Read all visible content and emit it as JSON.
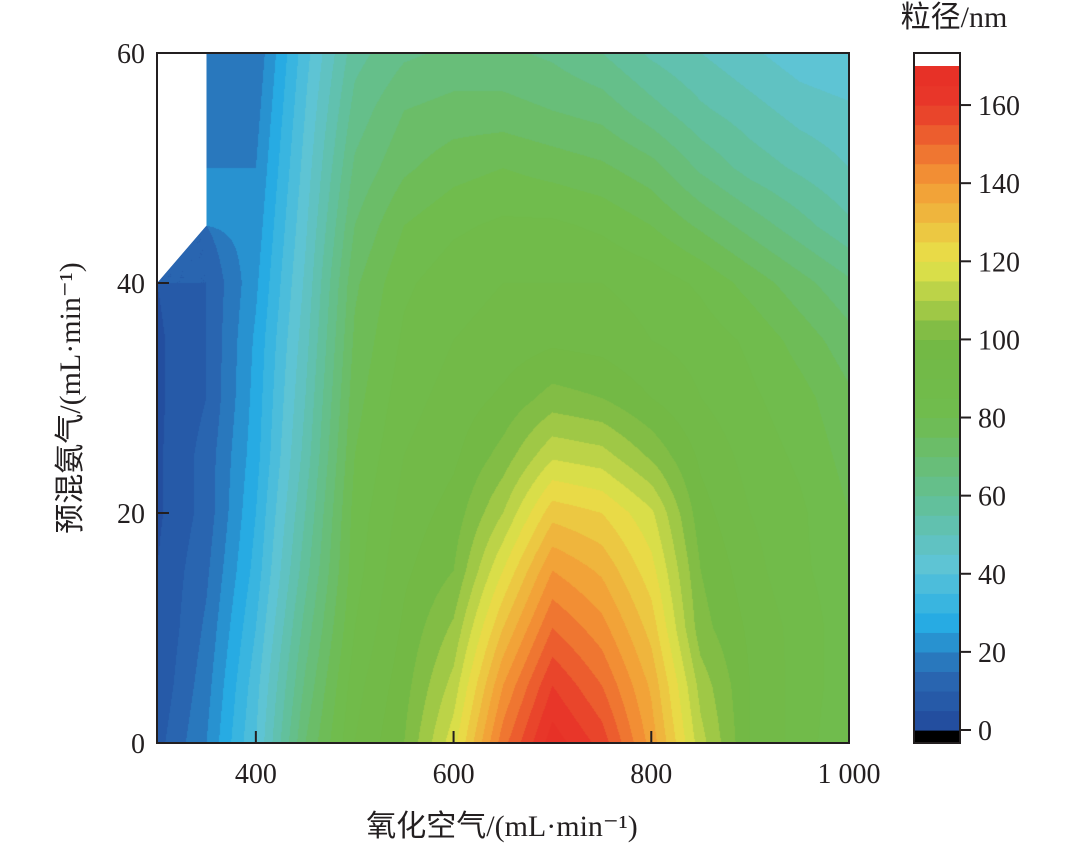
{
  "chart_data": {
    "type": "heatmap",
    "subtype": "filled-contour",
    "xlabel": "氧化空气/(mL·min⁻¹)",
    "ylabel": "预混氨气/(mL·min⁻¹)",
    "colorbar_label": "粒径/nm",
    "xlim": [
      300,
      1000
    ],
    "ylim": [
      0,
      60
    ],
    "x_ticks": [
      400,
      600,
      800,
      1000
    ],
    "x_tick_labels": [
      "400",
      "600",
      "800",
      "1 000"
    ],
    "y_ticks": [
      0,
      20,
      40,
      60
    ],
    "y_tick_labels": [
      "0",
      "20",
      "40",
      "60"
    ],
    "colorbar_range": [
      0,
      170
    ],
    "colorbar_ticks": [
      0,
      20,
      40,
      60,
      80,
      100,
      120,
      140,
      160
    ],
    "colorbar_tick_labels": [
      "0",
      "20",
      "40",
      "60",
      "80",
      "100",
      "120",
      "140",
      "160"
    ],
    "colorscale": [
      {
        "value": 0,
        "color": "#22489b"
      },
      {
        "value": 15,
        "color": "#2a6bb4"
      },
      {
        "value": 28,
        "color": "#27aee5"
      },
      {
        "value": 42,
        "color": "#5ec4d6"
      },
      {
        "value": 60,
        "color": "#63bf93"
      },
      {
        "value": 80,
        "color": "#6fbc4e"
      },
      {
        "value": 100,
        "color": "#73b844"
      },
      {
        "value": 120,
        "color": "#e8e34a"
      },
      {
        "value": 140,
        "color": "#f39a35"
      },
      {
        "value": 160,
        "color": "#e8392a"
      },
      {
        "value": 170,
        "color": "#e72e26"
      }
    ],
    "colorbar_below_min_color": "#000000",
    "colorbar_above_max_color": "#ffffff",
    "no_data_region": [
      [
        300,
        40
      ],
      [
        350,
        45
      ],
      [
        350,
        60
      ],
      [
        300,
        60
      ]
    ],
    "x_grid": [
      300,
      350,
      400,
      450,
      500,
      550,
      600,
      650,
      700,
      750,
      800,
      850,
      900,
      950,
      1000
    ],
    "y_grid": [
      0,
      5,
      10,
      15,
      20,
      25,
      30,
      35,
      40,
      45,
      50,
      55,
      60
    ],
    "z": [
      [
        8,
        20,
        40,
        70,
        90,
        100,
        118,
        148,
        168,
        158,
        138,
        112,
        95,
        88,
        80
      ],
      [
        6,
        18,
        38,
        66,
        88,
        98,
        112,
        140,
        160,
        150,
        134,
        108,
        95,
        88,
        82
      ],
      [
        5,
        16,
        35,
        62,
        85,
        96,
        106,
        130,
        150,
        142,
        128,
        102,
        94,
        88,
        82
      ],
      [
        5,
        14,
        32,
        58,
        83,
        94,
        100,
        120,
        140,
        134,
        122,
        100,
        92,
        86,
        82
      ],
      [
        4,
        12,
        30,
        55,
        82,
        92,
        97,
        110,
        128,
        125,
        116,
        97,
        90,
        86,
        80
      ],
      [
        4,
        12,
        28,
        52,
        80,
        90,
        94,
        102,
        114,
        112,
        104,
        94,
        88,
        84,
        78
      ],
      [
        4,
        10,
        27,
        50,
        78,
        88,
        92,
        96,
        102,
        100,
        95,
        90,
        86,
        82,
        76
      ],
      [
        4,
        10,
        26,
        48,
        76,
        86,
        90,
        92,
        94,
        93,
        90,
        88,
        84,
        78,
        72
      ],
      [
        null,
        10,
        24,
        46,
        74,
        84,
        88,
        90,
        90,
        90,
        88,
        84,
        78,
        72,
        66
      ],
      [
        null,
        null,
        22,
        44,
        70,
        80,
        84,
        86,
        86,
        84,
        80,
        74,
        68,
        62,
        56
      ],
      [
        null,
        null,
        20,
        42,
        66,
        74,
        78,
        80,
        78,
        76,
        72,
        64,
        58,
        54,
        50
      ],
      [
        null,
        null,
        18,
        40,
        62,
        70,
        72,
        72,
        70,
        68,
        62,
        56,
        52,
        48,
        46
      ],
      [
        null,
        null,
        16,
        38,
        58,
        64,
        66,
        66,
        64,
        60,
        54,
        50,
        46,
        42,
        40
      ]
    ]
  }
}
